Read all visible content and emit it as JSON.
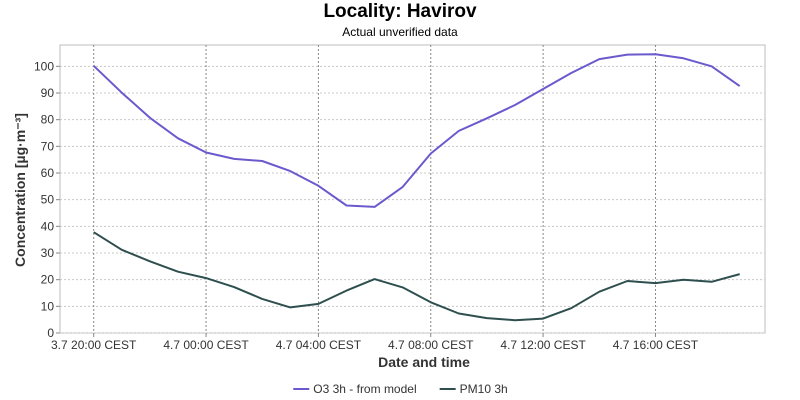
{
  "chart_data": {
    "type": "line",
    "title": "Locality: Havirov",
    "subtitle": "Actual unverified data",
    "xlabel": "Date and time",
    "ylabel": "Concentration [µg·m⁻³]",
    "ylim": [
      0,
      108
    ],
    "y_ticks": [
      0,
      10,
      20,
      30,
      40,
      50,
      60,
      70,
      80,
      90,
      100
    ],
    "x_ticks": [
      "3.7 20:00 CEST",
      "4.7 00:00 CEST",
      "4.7 04:00 CEST",
      "4.7 08:00 CEST",
      "4.7 12:00 CEST",
      "4.7 16:00 CEST"
    ],
    "x_tick_hours": [
      0,
      4,
      8,
      12,
      16,
      20
    ],
    "xlim_hours": [
      -1.2,
      23.9
    ],
    "grid": true,
    "legend_position": "bottom",
    "x_hours": [
      0,
      1,
      2,
      3,
      4,
      5,
      6,
      7,
      8,
      9,
      10,
      11,
      12,
      13,
      14,
      15,
      16,
      17,
      18,
      19,
      20,
      21,
      22,
      23
    ],
    "series": [
      {
        "name": "O3 3h - from model",
        "color": "#6a5acd",
        "values": [
          100.2,
          90.1,
          80.7,
          73.0,
          67.7,
          65.3,
          64.5,
          60.7,
          55.2,
          47.8,
          47.3,
          54.8,
          67.3,
          75.8,
          80.5,
          85.5,
          91.5,
          97.5,
          102.7,
          104.4,
          104.5,
          103.0,
          100.0,
          92.6
        ]
      },
      {
        "name": "PM10 3h",
        "color": "#2f4f4f",
        "values": [
          37.8,
          31.2,
          26.9,
          23.0,
          20.6,
          17.2,
          12.8,
          9.6,
          10.9,
          15.9,
          20.2,
          17.1,
          11.5,
          7.3,
          5.6,
          4.8,
          5.4,
          9.3,
          15.5,
          19.5,
          18.7,
          20.0,
          19.2,
          22.1
        ]
      }
    ]
  }
}
